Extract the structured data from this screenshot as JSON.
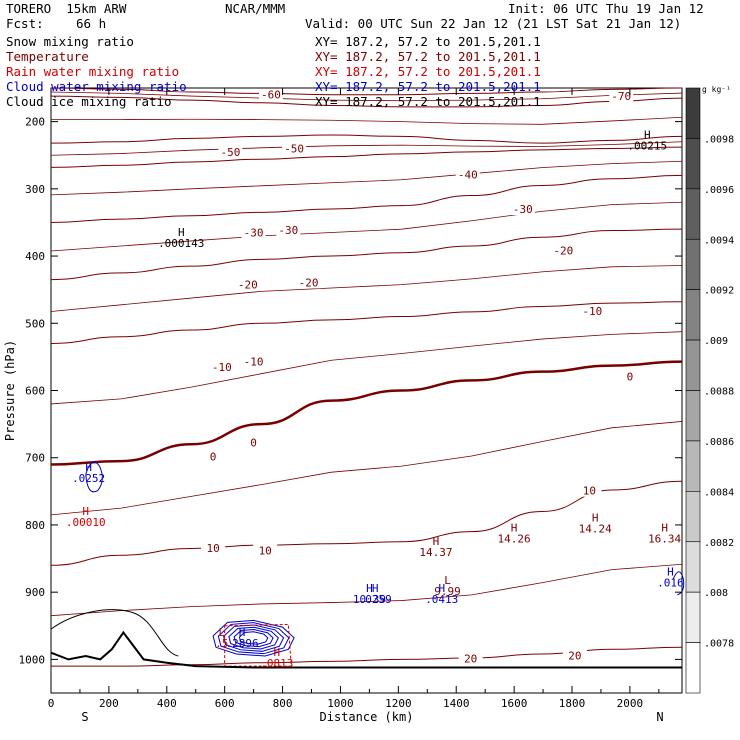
{
  "header": {
    "model": "TORERO  15km ARW",
    "center": "NCAR/MMM",
    "init": "Init: 06 UTC Thu 19 Jan 12",
    "fcst_label": "Fcst:",
    "fcst_value": "66 h",
    "valid": "Valid: 00 UTC Sun 22 Jan 12 (21 LST Sat 21 Jan 12)"
  },
  "fields": [
    {
      "name": "Snow mixing ratio",
      "xy": "XY= 187.2, 57.2 to 201.5,201.1",
      "color": "#000000"
    },
    {
      "name": "Temperature",
      "xy": "XY= 187.2, 57.2 to 201.5,201.1",
      "color": "#7a0000"
    },
    {
      "name": "Rain water mixing ratio",
      "xy": "XY= 187.2, 57.2 to 201.5,201.1",
      "color": "#d40000"
    },
    {
      "name": "Cloud water mixing ratio",
      "xy": "XY= 187.2, 57.2 to 201.5,201.1",
      "color": "#0000c8"
    },
    {
      "name": "Cloud ice mixing ratio",
      "xy": "XY= 187.2, 57.2 to 201.5,201.1",
      "color": "#000000"
    }
  ],
  "chart_data": {
    "type": "cross-section contour",
    "xlabel": "Distance (km)",
    "ylabel": "Pressure (hPa)",
    "xlim": [
      0,
      2180
    ],
    "ylim": [
      1050,
      150
    ],
    "x_ticks": [
      0,
      200,
      400,
      600,
      800,
      1000,
      1200,
      1400,
      1600,
      1800,
      2000
    ],
    "y_ticks": [
      200,
      300,
      400,
      500,
      600,
      700,
      800,
      900,
      1000
    ],
    "endpoints": {
      "left": "S",
      "right": "N"
    },
    "temperature_isotherms": [
      {
        "value": -70,
        "p": [
          150,
          152,
          156,
          158,
          160,
          160,
          158,
          156,
          152,
          150
        ]
      },
      {
        "value": -60,
        "p": [
          162,
          164,
          168,
          172,
          176,
          178,
          178,
          176,
          170,
          165
        ]
      },
      {
        "value": -50,
        "p": [
          232,
          230,
          225,
          222,
          220,
          222,
          228,
          232,
          228,
          222
        ]
      },
      {
        "value": -40,
        "p": [
          268,
          265,
          260,
          256,
          252,
          248,
          245,
          242,
          240,
          238
        ]
      },
      {
        "value": -30,
        "p": [
          350,
          345,
          340,
          335,
          330,
          325,
          310,
          295,
          285,
          280
        ]
      },
      {
        "value": -20,
        "p": [
          435,
          425,
          415,
          405,
          400,
          395,
          385,
          372,
          362,
          360
        ]
      },
      {
        "value": -10,
        "p": [
          530,
          520,
          510,
          500,
          495,
          490,
          483,
          475,
          470,
          468
        ]
      },
      {
        "value": 0,
        "p": [
          710,
          705,
          680,
          650,
          615,
          600,
          585,
          572,
          563,
          557
        ]
      },
      {
        "value": 10,
        "p": [
          860,
          845,
          835,
          830,
          828,
          825,
          810,
          780,
          748,
          735
        ]
      },
      {
        "value": 20,
        "p": [
          1010,
          1010,
          1008,
          1005,
          1003,
          1000,
          998,
          992,
          985,
          982
        ]
      }
    ],
    "isotherm_labels": [
      {
        "text": "-70",
        "x": 1970,
        "p": 165
      },
      {
        "text": "-60",
        "x": 760,
        "p": 163
      },
      {
        "text": "-50",
        "x": 620,
        "p": 248
      },
      {
        "text": "-50",
        "x": 840,
        "p": 243
      },
      {
        "text": "-40",
        "x": 1440,
        "p": 282
      },
      {
        "text": "-30",
        "x": 1630,
        "p": 333
      },
      {
        "text": "-30",
        "x": 700,
        "p": 368
      },
      {
        "text": "-30",
        "x": 820,
        "p": 364
      },
      {
        "text": "-20",
        "x": 1770,
        "p": 395
      },
      {
        "text": "-20",
        "x": 680,
        "p": 445
      },
      {
        "text": "-20",
        "x": 890,
        "p": 442
      },
      {
        "text": "-10",
        "x": 1870,
        "p": 485
      },
      {
        "text": "-10",
        "x": 590,
        "p": 568
      },
      {
        "text": "-10",
        "x": 700,
        "p": 560
      },
      {
        "text": "0",
        "x": 2000,
        "p": 582
      },
      {
        "text": "0",
        "x": 560,
        "p": 701
      },
      {
        "text": "0",
        "x": 700,
        "p": 680
      },
      {
        "text": "10",
        "x": 1860,
        "p": 752
      },
      {
        "text": "10",
        "x": 560,
        "p": 837
      },
      {
        "text": "10",
        "x": 740,
        "p": 841
      },
      {
        "text": "20",
        "x": 1450,
        "p": 1002
      },
      {
        "text": "20",
        "x": 1810,
        "p": 997
      }
    ],
    "extrema_labels": [
      {
        "mark": "H",
        "value": ".000143",
        "x": 450,
        "p": 370,
        "color": "#000000"
      },
      {
        "mark": "H",
        "value": ".00215",
        "x": 2060,
        "p": 225,
        "color": "#000000"
      },
      {
        "mark": "H",
        "value": ".0252",
        "x": 130,
        "p": 720,
        "color": "#0000c8"
      },
      {
        "mark": "H",
        "value": ".00010",
        "x": 120,
        "p": 785,
        "color": "#d40000"
      },
      {
        "mark": "H",
        "value": "14.37",
        "x": 1330,
        "p": 830,
        "color": "#7a0000"
      },
      {
        "mark": "H",
        "value": "14.26",
        "x": 1600,
        "p": 810,
        "color": "#7a0000"
      },
      {
        "mark": "H",
        "value": "14.24",
        "x": 1880,
        "p": 795,
        "color": "#7a0000"
      },
      {
        "mark": "H",
        "value": "16.34",
        "x": 2120,
        "p": 810,
        "color": "#7a0000"
      },
      {
        "mark": "L",
        "value": "9.99",
        "x": 1370,
        "p": 888,
        "color": "#7a0000"
      },
      {
        "mark": "H",
        "value": "10.39",
        "x": 1100,
        "p": 900,
        "color": "#0000c8"
      },
      {
        "mark": "H",
        "value": ".0259",
        "x": 1120,
        "p": 900,
        "color": "#0000c8"
      },
      {
        "mark": "H",
        "value": ".0413",
        "x": 1350,
        "p": 900,
        "color": "#0000c8"
      },
      {
        "mark": "H",
        "value": ".016",
        "x": 2140,
        "p": 875,
        "color": "#0000c8"
      },
      {
        "mark": "L",
        "value": ".5",
        "x": 590,
        "p": 965,
        "color": "#d40000"
      },
      {
        "mark": "H",
        "value": ".2896",
        "x": 660,
        "p": 965,
        "color": "#0000c8"
      },
      {
        "mark": "H",
        "value": ".0813",
        "x": 780,
        "p": 995,
        "color": "#d40000"
      }
    ],
    "terrain_p": [
      990,
      1000,
      995,
      1000,
      985,
      960,
      1000,
      1005,
      1010,
      1012,
      1012,
      1012,
      1012,
      1012
    ],
    "terrain_x": [
      0,
      60,
      120,
      170,
      210,
      250,
      320,
      400,
      500,
      700,
      1000,
      1500,
      2000,
      2180
    ],
    "colorbar": {
      "unit": "g kg⁻¹",
      "ticks": [
        ".0098",
        ".0096",
        ".0094",
        ".0092",
        ".009",
        ".0088",
        ".0086",
        ".0084",
        ".0082",
        ".008",
        ".0078"
      ]
    }
  }
}
